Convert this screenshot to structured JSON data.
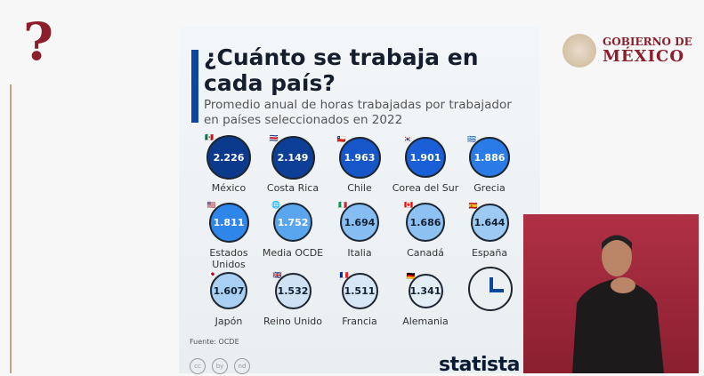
{
  "header": {
    "question_mark": "?",
    "gov_line1": "GOBIERNO DE",
    "gov_line2": "MÉXICO"
  },
  "infographic": {
    "title": "¿Cuánto se trabaja en cada país?",
    "subtitle": "Promedio anual de horas trabajadas por trabajador en países seleccionados en 2022",
    "source": "Fuente: OCDE",
    "brand": "statista",
    "license_icons": [
      "cc",
      "by",
      "nd"
    ],
    "items": [
      {
        "country": "México",
        "value": 2226,
        "display": "2.226",
        "flag": "🇲🇽",
        "color": "#0b3a8c"
      },
      {
        "country": "Costa Rica",
        "value": 2149,
        "display": "2.149",
        "flag": "🇨🇷",
        "color": "#0d3f96"
      },
      {
        "country": "Chile",
        "value": 1963,
        "display": "1.963",
        "flag": "🇨🇱",
        "color": "#1656c8"
      },
      {
        "country": "Corea del Sur",
        "value": 1901,
        "display": "1.901",
        "flag": "🇰🇷",
        "color": "#1a5fd6"
      },
      {
        "country": "Grecia",
        "value": 1886,
        "display": "1.886",
        "flag": "🇬🇷",
        "color": "#2a7be6"
      },
      {
        "country": "Estados Unidos",
        "value": 1811,
        "display": "1.811",
        "flag": "🇺🇸",
        "color": "#2f86ea"
      },
      {
        "country": "Media OCDE",
        "value": 1752,
        "display": "1.752",
        "flag": "🌐",
        "color": "#5aa6ee"
      },
      {
        "country": "Italia",
        "value": 1694,
        "display": "1.694",
        "flag": "🇮🇹",
        "color": "#86bdf2"
      },
      {
        "country": "Canadá",
        "value": 1686,
        "display": "1.686",
        "flag": "🇨🇦",
        "color": "#8cc1f2"
      },
      {
        "country": "España",
        "value": 1644,
        "display": "1.644",
        "flag": "🇪🇸",
        "color": "#9ccaf3"
      },
      {
        "country": "Japón",
        "value": 1607,
        "display": "1.607",
        "flag": "🇯🇵",
        "color": "#a9d0f3"
      },
      {
        "country": "Reino Unido",
        "value": 1532,
        "display": "1.532",
        "flag": "🇬🇧",
        "color": "#cfe2f4"
      },
      {
        "country": "Francia",
        "value": 1511,
        "display": "1.511",
        "flag": "🇫🇷",
        "color": "#d8e7f5"
      },
      {
        "country": "Alemania",
        "value": 1341,
        "display": "1.341",
        "flag": "🇩🇪",
        "color": "#e3edf6"
      }
    ]
  }
}
